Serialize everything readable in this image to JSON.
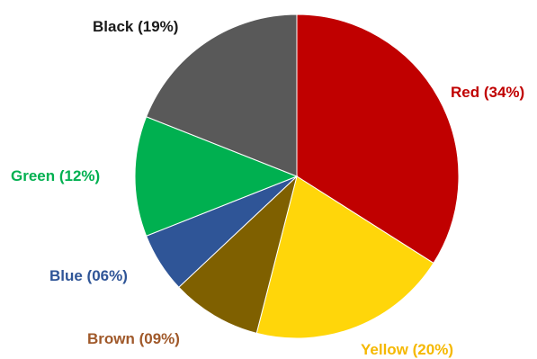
{
  "chart_data": {
    "type": "pie",
    "title": "",
    "start_angle_deg": 0,
    "direction": "clockwise",
    "slices": [
      {
        "name": "Red",
        "value": 34,
        "label": "Red (34%)",
        "color": "#C00000",
        "label_color": "#C00000"
      },
      {
        "name": "Yellow",
        "value": 20,
        "label": "Yellow (20%)",
        "color": "#FFD60A",
        "label_color": "#F5B800"
      },
      {
        "name": "Brown",
        "value": 9,
        "label": "Brown (09%)",
        "color": "#7F6000",
        "label_color": "#A0592A"
      },
      {
        "name": "Blue",
        "value": 6,
        "label": "Blue (06%)",
        "color": "#2F5597",
        "label_color": "#2F5597"
      },
      {
        "name": "Green",
        "value": 12,
        "label": "Green (12%)",
        "color": "#00B050",
        "label_color": "#00B050"
      },
      {
        "name": "Black",
        "value": 19,
        "label": "Black (19%)",
        "color": "#595959",
        "label_color": "#1A1A1A"
      }
    ]
  }
}
